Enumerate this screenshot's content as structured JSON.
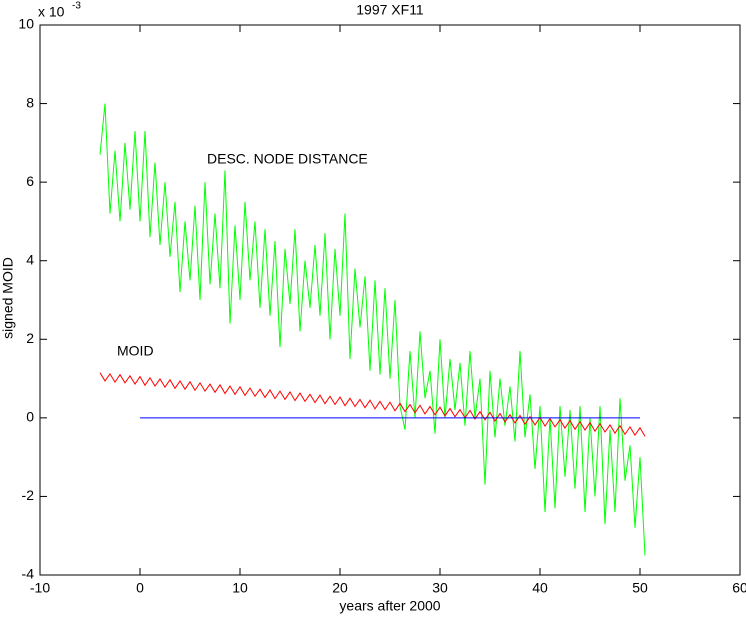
{
  "chart_data": {
    "type": "line",
    "title": "1997 XF11",
    "xlabel": "years after 2000",
    "ylabel": "signed MOID",
    "y_multiplier": {
      "base": "x 10",
      "exponent": "-3"
    },
    "xlim": [
      -10,
      60
    ],
    "ylim": [
      -4,
      10
    ],
    "xticks": [
      -10,
      0,
      10,
      20,
      30,
      40,
      50,
      60
    ],
    "yticks": [
      -4,
      -2,
      0,
      2,
      4,
      6,
      8,
      10
    ],
    "grid": false,
    "series": [
      {
        "name": "DESC. NODE DISTANCE",
        "color": "#00ff00",
        "x": [
          -4,
          -3.5,
          -3,
          -2.5,
          -2,
          -1.5,
          -1,
          -0.5,
          0,
          0.5,
          1,
          1.5,
          2,
          2.5,
          3,
          3.5,
          4,
          4.5,
          5,
          5.5,
          6,
          6.5,
          7,
          7.5,
          8,
          8.5,
          9,
          9.5,
          10,
          10.5,
          11,
          11.5,
          12,
          12.5,
          13,
          13.5,
          14,
          14.5,
          15,
          15.5,
          16,
          16.5,
          17,
          17.5,
          18,
          18.5,
          19,
          19.5,
          20,
          20.5,
          21,
          21.5,
          22,
          22.5,
          23,
          23.5,
          24,
          24.5,
          25,
          25.5,
          26,
          26.5,
          27,
          27.5,
          28,
          28.5,
          29,
          29.5,
          30,
          30.5,
          31,
          31.5,
          32,
          32.5,
          33,
          33.5,
          34,
          34.5,
          35,
          35.5,
          36,
          36.5,
          37,
          37.5,
          38,
          38.5,
          39,
          39.5,
          40,
          40.5,
          41,
          41.5,
          42,
          42.5,
          43,
          43.5,
          44,
          44.5,
          45,
          45.5,
          46,
          46.5,
          47,
          47.5,
          48,
          48.5,
          49,
          49.5,
          50,
          50.5
        ],
        "values": [
          6.7,
          8.0,
          5.2,
          6.8,
          5.0,
          7.0,
          5.3,
          7.3,
          5.0,
          7.3,
          4.6,
          6.5,
          4.4,
          6.0,
          4.1,
          5.5,
          3.2,
          5.0,
          3.5,
          5.4,
          3.0,
          6.0,
          3.4,
          5.2,
          3.3,
          6.3,
          2.4,
          4.9,
          3.0,
          5.5,
          3.5,
          5.0,
          2.8,
          4.8,
          2.6,
          4.5,
          1.8,
          4.3,
          2.9,
          4.8,
          2.2,
          4.0,
          2.8,
          4.4,
          2.6,
          4.7,
          2.0,
          4.3,
          2.6,
          5.2,
          1.5,
          3.8,
          2.3,
          3.6,
          1.2,
          3.5,
          1.1,
          3.3,
          1.0,
          3.0,
          0.3,
          -0.3,
          1.7,
          0.0,
          2.2,
          0.5,
          1.2,
          -0.4,
          2.0,
          0.0,
          1.5,
          0.2,
          1.4,
          -0.2,
          1.7,
          0.0,
          1.0,
          -1.7,
          1.2,
          -0.5,
          1.0,
          -0.2,
          0.8,
          -0.6,
          1.7,
          -0.5,
          0.6,
          -1.3,
          0.3,
          -2.4,
          0.0,
          -2.3,
          0.3,
          -1.5,
          0.2,
          -1.8,
          0.3,
          -2.4,
          0.0,
          -2.0,
          0.3,
          -2.7,
          -0.3,
          -2.4,
          0.5,
          -1.6,
          -0.7,
          -2.8,
          -1.0,
          -3.5
        ]
      },
      {
        "name": "MOID",
        "color": "#ff0000",
        "x": [
          -4,
          -3.5,
          -3,
          -2.5,
          -2,
          -1.5,
          -1,
          -0.5,
          0,
          0.5,
          1,
          1.5,
          2,
          2.5,
          3,
          3.5,
          4,
          4.5,
          5,
          5.5,
          6,
          6.5,
          7,
          7.5,
          8,
          8.5,
          9,
          9.5,
          10,
          10.5,
          11,
          11.5,
          12,
          12.5,
          13,
          13.5,
          14,
          14.5,
          15,
          15.5,
          16,
          16.5,
          17,
          17.5,
          18,
          18.5,
          19,
          19.5,
          20,
          20.5,
          21,
          21.5,
          22,
          22.5,
          23,
          23.5,
          24,
          24.5,
          25,
          25.5,
          26,
          26.5,
          27,
          27.5,
          28,
          28.5,
          29,
          29.5,
          30,
          30.5,
          31,
          31.5,
          32,
          32.5,
          33,
          33.5,
          34,
          34.5,
          35,
          35.5,
          36,
          36.5,
          37,
          37.5,
          38,
          38.5,
          39,
          39.5,
          40,
          40.5,
          41,
          41.5,
          42,
          42.5,
          43,
          43.5,
          44,
          44.5,
          45,
          45.5,
          46,
          46.5,
          47,
          47.5,
          48,
          48.5,
          49,
          49.5,
          50,
          50.5
        ],
        "values": [
          1.15,
          0.94,
          1.12,
          0.91,
          1.1,
          0.89,
          1.07,
          0.86,
          1.05,
          0.83,
          1.02,
          0.81,
          0.99,
          0.78,
          0.97,
          0.75,
          0.94,
          0.73,
          0.92,
          0.7,
          0.89,
          0.68,
          0.86,
          0.65,
          0.84,
          0.62,
          0.81,
          0.6,
          0.79,
          0.57,
          0.76,
          0.55,
          0.73,
          0.52,
          0.71,
          0.49,
          0.68,
          0.47,
          0.66,
          0.44,
          0.63,
          0.42,
          0.6,
          0.39,
          0.58,
          0.36,
          0.55,
          0.34,
          0.53,
          0.31,
          0.5,
          0.29,
          0.47,
          0.26,
          0.45,
          0.23,
          0.42,
          0.21,
          0.4,
          0.18,
          0.37,
          0.16,
          0.34,
          0.13,
          0.32,
          0.1,
          0.29,
          0.08,
          0.27,
          0.05,
          0.24,
          0.03,
          0.21,
          0.0,
          0.19,
          -0.03,
          0.16,
          -0.05,
          0.14,
          -0.08,
          0.11,
          -0.1,
          0.08,
          -0.13,
          0.06,
          -0.16,
          0.03,
          -0.18,
          0.01,
          -0.21,
          -0.02,
          -0.23,
          -0.05,
          -0.26,
          -0.07,
          -0.29,
          -0.1,
          -0.31,
          -0.12,
          -0.34,
          -0.15,
          -0.36,
          -0.18,
          -0.39,
          -0.2,
          -0.42,
          -0.23,
          -0.44,
          -0.25,
          -0.47
        ]
      },
      {
        "color": "#0000ff",
        "x": [
          0,
          50
        ],
        "values": [
          0,
          0
        ]
      }
    ]
  }
}
